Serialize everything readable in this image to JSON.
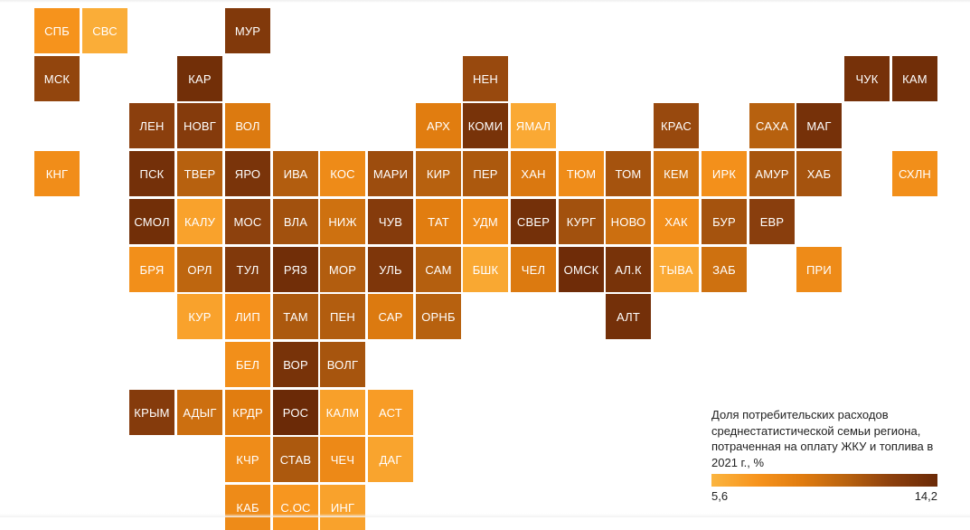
{
  "legend": {
    "title": "Доля потребительских расходов среднестатистической семьи региона, потраченная на оплату ЖКУ и топлива в 2021 г., %",
    "min_label": "5,6",
    "max_label": "14,2",
    "min": 5.6,
    "max": 14.2,
    "colors": [
      "#fbb540",
      "#f7941d",
      "#e07c10",
      "#b8620f",
      "#8b3f0d",
      "#6b2a07"
    ]
  },
  "regions": [
    {
      "code": "СПБ",
      "row": 0,
      "col": 0,
      "value": 7.4
    },
    {
      "code": "СВС",
      "row": 0,
      "col": 1,
      "value": 6.0
    },
    {
      "code": "МУР",
      "row": 0,
      "col": 4,
      "value": 13.0
    },
    {
      "code": "МСК",
      "row": 1,
      "col": 0,
      "value": 12.2
    },
    {
      "code": "КАР",
      "row": 1,
      "col": 3,
      "value": 13.8
    },
    {
      "code": "НЕН",
      "row": 1,
      "col": 9,
      "value": 12.0
    },
    {
      "code": "ЧУК",
      "row": 1,
      "col": 17,
      "value": 13.6
    },
    {
      "code": "КАМ",
      "row": 1,
      "col": 18,
      "value": 13.9
    },
    {
      "code": "ЛЕН",
      "row": 2,
      "col": 2,
      "value": 12.5
    },
    {
      "code": "НОВГ",
      "row": 2,
      "col": 3,
      "value": 12.8
    },
    {
      "code": "ВОЛ",
      "row": 2,
      "col": 4,
      "value": 9.2
    },
    {
      "code": "АРХ",
      "row": 2,
      "col": 8,
      "value": 9.0
    },
    {
      "code": "КОМИ",
      "row": 2,
      "col": 9,
      "value": 13.5
    },
    {
      "code": "ЯМАЛ",
      "row": 2,
      "col": 10,
      "value": 6.2
    },
    {
      "code": "КРАС",
      "row": 2,
      "col": 13,
      "value": 12.0
    },
    {
      "code": "САХА",
      "row": 2,
      "col": 15,
      "value": 10.8
    },
    {
      "code": "МАГ",
      "row": 2,
      "col": 16,
      "value": 13.6
    },
    {
      "code": "КНГ",
      "row": 3,
      "col": 0,
      "value": 7.8
    },
    {
      "code": "ПСК",
      "row": 3,
      "col": 2,
      "value": 13.7
    },
    {
      "code": "ТВЕР",
      "row": 3,
      "col": 3,
      "value": 10.8
    },
    {
      "code": "ЯРО",
      "row": 3,
      "col": 4,
      "value": 13.4
    },
    {
      "code": "ИВА",
      "row": 3,
      "col": 5,
      "value": 11.0
    },
    {
      "code": "КОС",
      "row": 3,
      "col": 6,
      "value": 8.0
    },
    {
      "code": "МАРИ",
      "row": 3,
      "col": 7,
      "value": 11.8
    },
    {
      "code": "КИР",
      "row": 3,
      "col": 8,
      "value": 10.8
    },
    {
      "code": "ПЕР",
      "row": 3,
      "col": 9,
      "value": 11.2
    },
    {
      "code": "ХАН",
      "row": 3,
      "col": 10,
      "value": 9.3
    },
    {
      "code": "ТЮМ",
      "row": 3,
      "col": 11,
      "value": 7.9
    },
    {
      "code": "ТОМ",
      "row": 3,
      "col": 12,
      "value": 11.5
    },
    {
      "code": "КЕМ",
      "row": 3,
      "col": 13,
      "value": 9.8
    },
    {
      "code": "ИРК",
      "row": 3,
      "col": 14,
      "value": 7.6
    },
    {
      "code": "АМУР",
      "row": 3,
      "col": 15,
      "value": 11.4
    },
    {
      "code": "ХАБ",
      "row": 3,
      "col": 16,
      "value": 11.5
    },
    {
      "code": "СХЛН",
      "row": 3,
      "col": 18,
      "value": 7.7
    },
    {
      "code": "СМОЛ",
      "row": 4,
      "col": 2,
      "value": 13.8
    },
    {
      "code": "КАЛУ",
      "row": 4,
      "col": 3,
      "value": 6.6
    },
    {
      "code": "МОС",
      "row": 4,
      "col": 4,
      "value": 12.4
    },
    {
      "code": "ВЛА",
      "row": 4,
      "col": 5,
      "value": 11.6
    },
    {
      "code": "НИЖ",
      "row": 4,
      "col": 6,
      "value": 9.8
    },
    {
      "code": "ЧУВ",
      "row": 4,
      "col": 7,
      "value": 12.8
    },
    {
      "code": "ТАТ",
      "row": 4,
      "col": 8,
      "value": 9.0
    },
    {
      "code": "УДМ",
      "row": 4,
      "col": 9,
      "value": 8.0
    },
    {
      "code": "СВЕР",
      "row": 4,
      "col": 10,
      "value": 13.7
    },
    {
      "code": "КУРГ",
      "row": 4,
      "col": 11,
      "value": 11.6
    },
    {
      "code": "НОВО",
      "row": 4,
      "col": 12,
      "value": 9.9
    },
    {
      "code": "ХАК",
      "row": 4,
      "col": 13,
      "value": 7.8
    },
    {
      "code": "БУР",
      "row": 4,
      "col": 14,
      "value": 11.5
    },
    {
      "code": "ЕВР",
      "row": 4,
      "col": 15,
      "value": 12.6
    },
    {
      "code": "БРЯ",
      "row": 5,
      "col": 2,
      "value": 7.7
    },
    {
      "code": "ОРЛ",
      "row": 5,
      "col": 3,
      "value": 10.5
    },
    {
      "code": "ТУЛ",
      "row": 5,
      "col": 4,
      "value": 13.0
    },
    {
      "code": "РЯЗ",
      "row": 5,
      "col": 5,
      "value": 13.9
    },
    {
      "code": "МОР",
      "row": 5,
      "col": 6,
      "value": 11.0
    },
    {
      "code": "УЛЬ",
      "row": 5,
      "col": 7,
      "value": 13.2
    },
    {
      "code": "САМ",
      "row": 5,
      "col": 8,
      "value": 10.9
    },
    {
      "code": "БШК",
      "row": 5,
      "col": 9,
      "value": 6.3
    },
    {
      "code": "ЧЕЛ",
      "row": 5,
      "col": 10,
      "value": 9.2
    },
    {
      "code": "ОМСК",
      "row": 5,
      "col": 11,
      "value": 14.0
    },
    {
      "code": "АЛ.К",
      "row": 5,
      "col": 12,
      "value": 13.5
    },
    {
      "code": "ТЫВА",
      "row": 5,
      "col": 13,
      "value": 6.2
    },
    {
      "code": "ЗАБ",
      "row": 5,
      "col": 14,
      "value": 9.8
    },
    {
      "code": "ПРИ",
      "row": 5,
      "col": 16,
      "value": 8.0
    },
    {
      "code": "КУР",
      "row": 6,
      "col": 3,
      "value": 6.6
    },
    {
      "code": "ЛИП",
      "row": 6,
      "col": 4,
      "value": 7.5
    },
    {
      "code": "ТАМ",
      "row": 6,
      "col": 5,
      "value": 11.2
    },
    {
      "code": "ПЕН",
      "row": 6,
      "col": 6,
      "value": 11.0
    },
    {
      "code": "САР",
      "row": 6,
      "col": 7,
      "value": 9.2
    },
    {
      "code": "ОРНБ",
      "row": 6,
      "col": 8,
      "value": 10.8
    },
    {
      "code": "АЛТ",
      "row": 6,
      "col": 12,
      "value": 13.7
    },
    {
      "code": "БЕЛ",
      "row": 7,
      "col": 4,
      "value": 7.7
    },
    {
      "code": "ВОР",
      "row": 7,
      "col": 5,
      "value": 13.5
    },
    {
      "code": "ВОЛГ",
      "row": 7,
      "col": 6,
      "value": 11.4
    },
    {
      "code": "КРЫМ",
      "row": 8,
      "col": 2,
      "value": 12.8
    },
    {
      "code": "АДЫГ",
      "row": 8,
      "col": 3,
      "value": 9.9
    },
    {
      "code": "КРДР",
      "row": 8,
      "col": 4,
      "value": 9.0
    },
    {
      "code": "РОС",
      "row": 8,
      "col": 5,
      "value": 14.2
    },
    {
      "code": "КАЛМ",
      "row": 8,
      "col": 6,
      "value": 6.7
    },
    {
      "code": "АСТ",
      "row": 8,
      "col": 7,
      "value": 6.9
    },
    {
      "code": "КЧР",
      "row": 9,
      "col": 4,
      "value": 7.9
    },
    {
      "code": "СТАВ",
      "row": 9,
      "col": 5,
      "value": 11.2
    },
    {
      "code": "ЧЕЧ",
      "row": 9,
      "col": 6,
      "value": 8.1
    },
    {
      "code": "ДАГ",
      "row": 9,
      "col": 7,
      "value": 6.5
    },
    {
      "code": "КАБ",
      "row": 10,
      "col": 4,
      "value": 8.0
    },
    {
      "code": "С.ОС",
      "row": 10,
      "col": 5,
      "value": 7.2
    },
    {
      "code": "ИНГ",
      "row": 10,
      "col": 6,
      "value": 6.6
    }
  ]
}
